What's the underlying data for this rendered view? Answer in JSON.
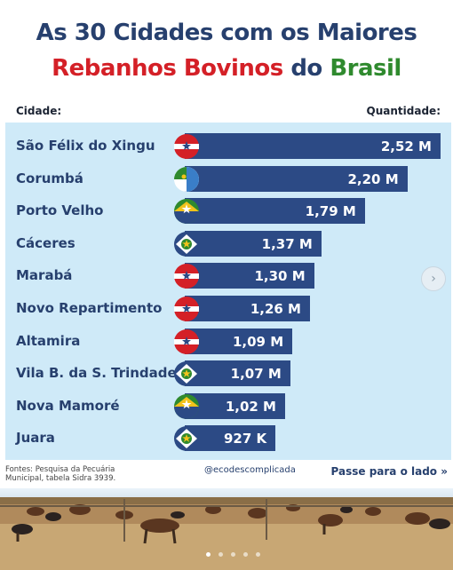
{
  "title": {
    "line1": "As 30 Cidades com os Maiores",
    "line2_part1": "Rebanhos Bovinos",
    "line2_part2": "do",
    "line2_part3": "Brasil"
  },
  "colors": {
    "title_blue": "#27406e",
    "title_red": "#d42027",
    "title_green": "#2f8a2e",
    "bar": "#2c4a85",
    "panel": "#cfeaf8"
  },
  "headers": {
    "city": "Cidade:",
    "quantity": "Quantidade:"
  },
  "chart_data": {
    "type": "bar",
    "orientation": "horizontal",
    "title": "As 30 Cidades com os Maiores Rebanhos Bovinos do Brasil",
    "categories": [
      "São Félix do Xingu",
      "Corumbá",
      "Porto Velho",
      "Cáceres",
      "Marabá",
      "Novo Repartimento",
      "Altamira",
      "Vila B. da S. Trindade",
      "Nova Mamoré",
      "Juara"
    ],
    "values": [
      2.52,
      2.2,
      1.79,
      1.37,
      1.3,
      1.26,
      1.09,
      1.07,
      1.02,
      0.927
    ],
    "value_labels": [
      "2,52 M",
      "2,20 M",
      "1,79 M",
      "1,37 M",
      "1,30 M",
      "1,26 M",
      "1,09 M",
      "1,07 M",
      "1,02 M",
      "927 K"
    ],
    "flags": [
      "para",
      "mato-grosso-do-sul",
      "rondonia",
      "mato-grosso",
      "para",
      "para",
      "para",
      "mato-grosso",
      "rondonia",
      "mato-grosso"
    ],
    "unit": "M"
  },
  "footer": {
    "source": "Fontes: Pesquisa da Pecuária Municipal, tabela Sidra 3939.",
    "handle": "@ecodescomplicada",
    "swipe": "Passe para o lado",
    "swipe_icon": "double-chevron-right-icon"
  },
  "carousel": {
    "pages": 5,
    "current": 1,
    "next_icon": "chevron-right-icon"
  }
}
